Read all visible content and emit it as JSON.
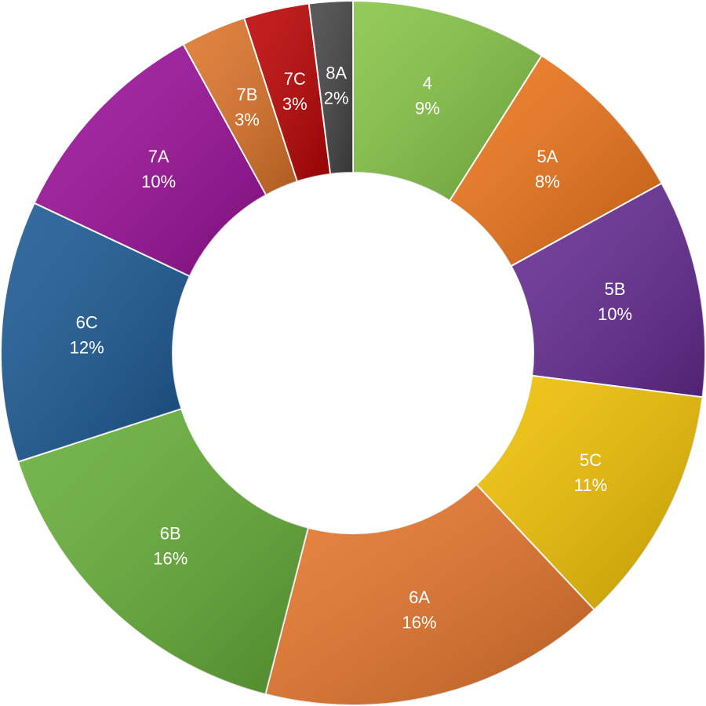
{
  "chart_data": {
    "type": "donut",
    "categories": [
      "4",
      "5A",
      "5B",
      "5C",
      "6A",
      "6B",
      "6C",
      "7A",
      "7B",
      "7C",
      "8A"
    ],
    "values": [
      9,
      8,
      10,
      11,
      16,
      16,
      12,
      10,
      3,
      3,
      2
    ],
    "value_labels": [
      "9%",
      "8%",
      "10%",
      "11%",
      "16%",
      "16%",
      "12%",
      "10%",
      "3%",
      "3%",
      "2%"
    ],
    "colors": [
      "#84c444",
      "#ee7418",
      "#642a92",
      "#f0c000",
      "#e6752a",
      "#64ae36",
      "#195893",
      "#9c0f9a",
      "#de7428",
      "#bc0202",
      "#444444"
    ]
  }
}
